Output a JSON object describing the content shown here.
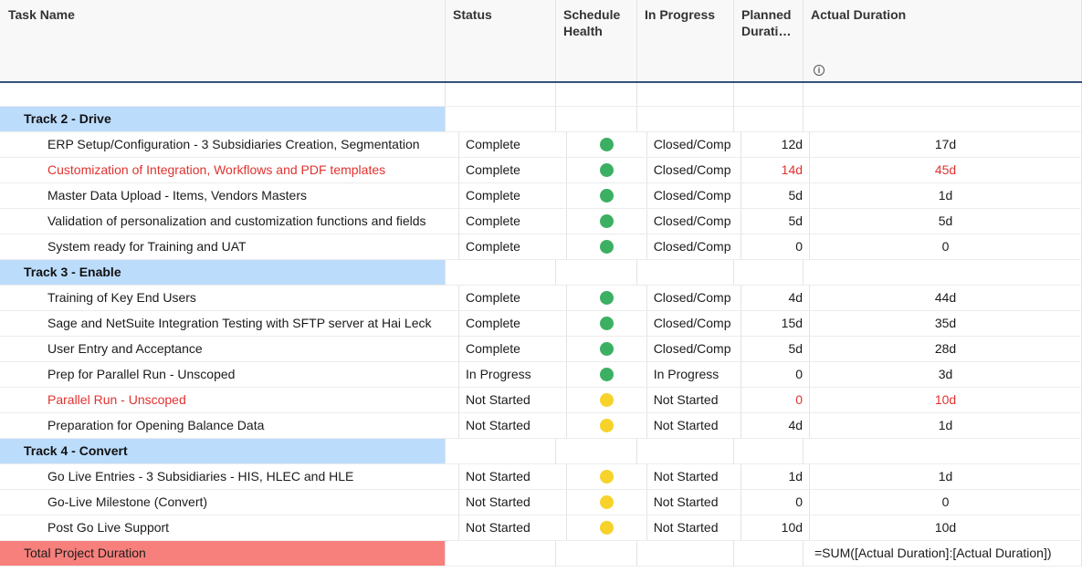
{
  "columns": {
    "task_name": "Task Name",
    "status": "Status",
    "schedule_health_1": "Schedule",
    "schedule_health_2": "Health",
    "in_progress": "In Progress",
    "planned_1": "Planned",
    "planned_2": "Durati…",
    "actual_duration": "Actual Duration"
  },
  "colors": {
    "green": "#3cb062",
    "yellow": "#f6d22b",
    "red_text": "#e0322f"
  },
  "rows": [
    {
      "type": "section",
      "task": "Track 2 - Drive"
    },
    {
      "type": "task",
      "task": "ERP Setup/Configuration - 3 Subsidiaries Creation, Segmentation",
      "status": "Complete",
      "health": "green",
      "progress": "Closed/Comp",
      "planned": "12d",
      "actual": "17d",
      "red": false
    },
    {
      "type": "task",
      "task": "Customization of Integration, Workflows and PDF templates",
      "status": "Complete",
      "health": "green",
      "progress": "Closed/Comp",
      "planned": "14d",
      "actual": "45d",
      "red": true
    },
    {
      "type": "task",
      "task": "Master Data Upload - Items, Vendors Masters",
      "status": "Complete",
      "health": "green",
      "progress": "Closed/Comp",
      "planned": "5d",
      "actual": "1d",
      "red": false
    },
    {
      "type": "task",
      "task": "Validation of personalization and customization functions and fields",
      "status": "Complete",
      "health": "green",
      "progress": "Closed/Comp",
      "planned": "5d",
      "actual": "5d",
      "red": false
    },
    {
      "type": "task",
      "task": "System ready for Training and UAT",
      "status": "Complete",
      "health": "green",
      "progress": "Closed/Comp",
      "planned": "0",
      "actual": "0",
      "red": false
    },
    {
      "type": "section",
      "task": "Track 3 - Enable"
    },
    {
      "type": "task",
      "task": "Training of Key End Users",
      "status": "Complete",
      "health": "green",
      "progress": "Closed/Comp",
      "planned": "4d",
      "actual": "44d",
      "red": false
    },
    {
      "type": "task",
      "task": "Sage and NetSuite Integration Testing with SFTP server at Hai Leck",
      "status": "Complete",
      "health": "green",
      "progress": "Closed/Comp",
      "planned": "15d",
      "actual": "35d",
      "red": false
    },
    {
      "type": "task",
      "task": "User Entry and Acceptance",
      "status": "Complete",
      "health": "green",
      "progress": "Closed/Comp",
      "planned": "5d",
      "actual": "28d",
      "red": false
    },
    {
      "type": "task",
      "task": "Prep for Parallel Run - Unscoped",
      "status": "In Progress",
      "health": "green",
      "progress": "In Progress",
      "planned": "0",
      "actual": "3d",
      "red": false
    },
    {
      "type": "task",
      "task": "Parallel Run - Unscoped",
      "status": "Not Started",
      "health": "yellow",
      "progress": "Not Started",
      "planned": "0",
      "actual": "10d",
      "red": true
    },
    {
      "type": "task",
      "task": "Preparation for Opening Balance Data",
      "status": "Not Started",
      "health": "yellow",
      "progress": "Not Started",
      "planned": "4d",
      "actual": "1d",
      "red": false
    },
    {
      "type": "section",
      "task": "Track 4 - Convert"
    },
    {
      "type": "task",
      "task": "Go Live Entries - 3 Subsidiaries - HIS, HLEC and HLE",
      "status": "Not Started",
      "health": "yellow",
      "progress": "Not Started",
      "planned": "1d",
      "actual": "1d",
      "red": false
    },
    {
      "type": "task",
      "task": "Go-Live Milestone (Convert)",
      "status": "Not Started",
      "health": "yellow",
      "progress": "Not Started",
      "planned": "0",
      "actual": "0",
      "red": false
    },
    {
      "type": "task",
      "task": "Post Go Live Support",
      "status": "Not Started",
      "health": "yellow",
      "progress": "Not Started",
      "planned": "10d",
      "actual": "10d",
      "red": false
    },
    {
      "type": "total",
      "task": "Total Project Duration",
      "formula": "=SUM([Actual Duration]:[Actual Duration])"
    }
  ]
}
